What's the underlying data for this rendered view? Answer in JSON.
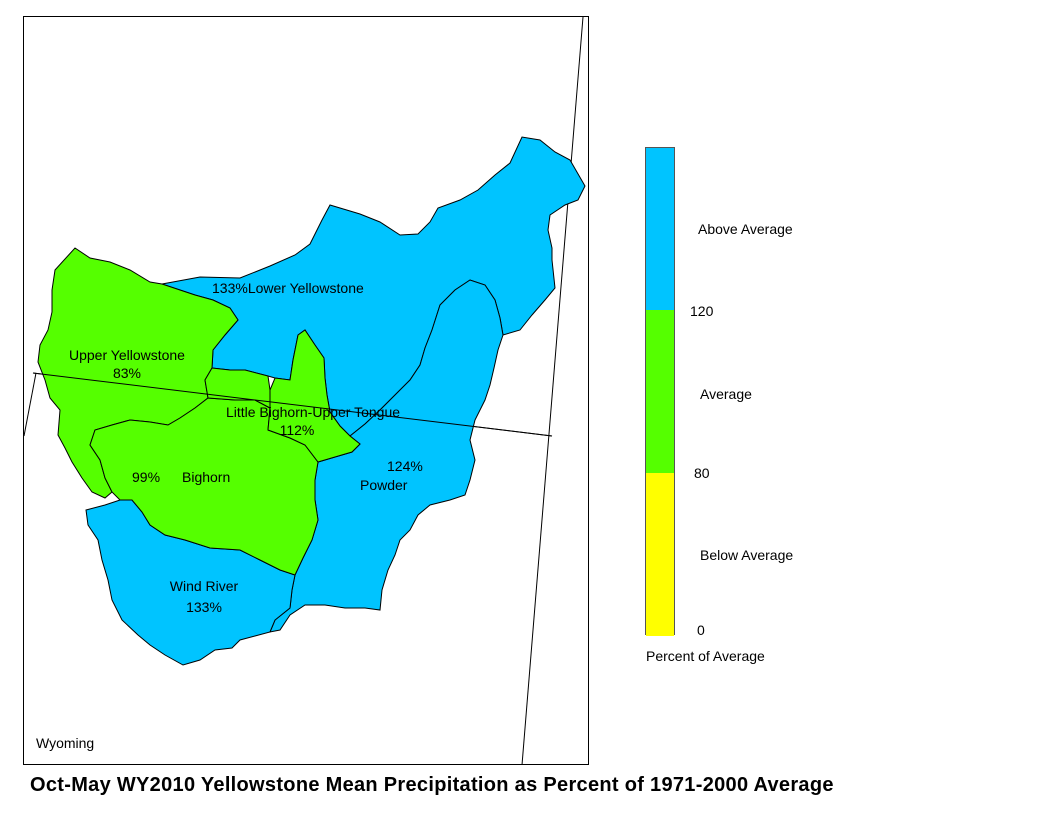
{
  "state_label": "Wyoming",
  "title": "Oct-May WY2010 Yellowstone Mean Precipitation as Percent of 1971-2000 Average",
  "colors": {
    "above": "#00c4ff",
    "average": "#55ff00",
    "below": "#ffff00",
    "boundary": "#000000"
  },
  "basins": [
    {
      "name": "Lower Yellowstone",
      "percent": "133%",
      "category": "above"
    },
    {
      "name": "Upper Yellowstone",
      "percent": "83%",
      "category": "average"
    },
    {
      "name": "Little Bighorn-Upper Tongue",
      "percent": "112%",
      "category": "average"
    },
    {
      "name": "Bighorn",
      "percent": "99%",
      "category": "average"
    },
    {
      "name": "Powder",
      "percent": "124%",
      "category": "above"
    },
    {
      "name": "Wind River",
      "percent": "133%",
      "category": "above"
    }
  ],
  "legend": {
    "caption": "Percent of Average",
    "classes": [
      {
        "label": "Above Average",
        "color": "#00c4ff",
        "min": 120
      },
      {
        "label": "Average",
        "color": "#55ff00",
        "min": 80,
        "max": 120
      },
      {
        "label": "Below Average",
        "color": "#ffff00",
        "min": 0,
        "max": 80
      }
    ],
    "ticks": [
      "120",
      "80",
      "0"
    ]
  }
}
